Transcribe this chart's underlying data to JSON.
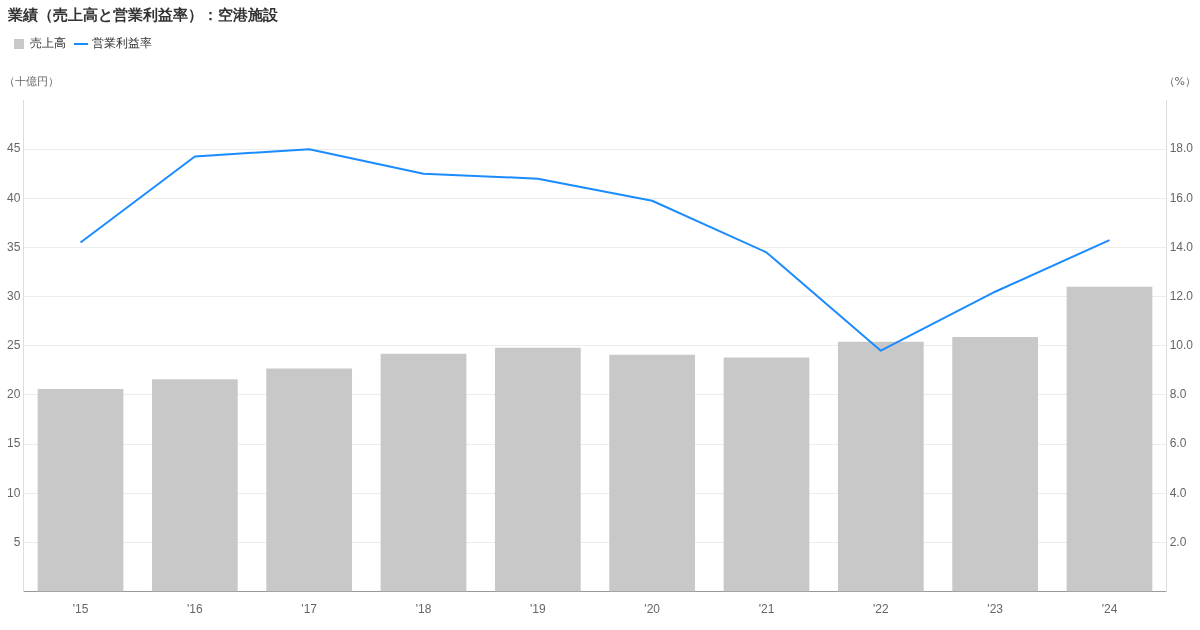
{
  "chart_data": {
    "type": "bar",
    "title": "業績（売上高と営業利益率）：空港施設",
    "ylabel": "（十億円）",
    "y2label": "（%）",
    "categories": [
      "'15",
      "'16",
      "'17",
      "'18",
      "'19",
      "'20",
      "'21",
      "'22",
      "'23",
      "'24"
    ],
    "series": [
      {
        "name": "売上高",
        "color": "#c8c8c8",
        "values": [
          20.6,
          21.6,
          22.7,
          24.2,
          24.8,
          24.1,
          23.8,
          25.4,
          25.9,
          31.0
        ]
      },
      {
        "name": "営業利益率",
        "type": "line",
        "axis": "y2",
        "color": "#1a8cff",
        "values": [
          14.2,
          17.7,
          18.0,
          17.0,
          16.8,
          15.9,
          13.8,
          9.8,
          12.2,
          14.3
        ]
      }
    ],
    "ylim": [
      0,
      50
    ],
    "yticks": [
      5,
      10,
      15,
      20,
      25,
      30,
      35,
      40,
      45
    ],
    "y2lim": [
      0,
      20
    ],
    "y2ticks": [
      {
        "value": 2,
        "label": "2.0"
      },
      {
        "value": 4,
        "label": "4.0"
      },
      {
        "value": 6,
        "label": "6.0"
      },
      {
        "value": 8,
        "label": "8.0"
      },
      {
        "value": 10,
        "label": "10.0"
      },
      {
        "value": 12,
        "label": "12.0"
      },
      {
        "value": 14,
        "label": "14.0"
      },
      {
        "value": 16,
        "label": "16.0"
      },
      {
        "value": 18,
        "label": "18.0"
      }
    ],
    "grid": "y",
    "legend": "top left",
    "marker": "none",
    "line_style": "solid"
  }
}
